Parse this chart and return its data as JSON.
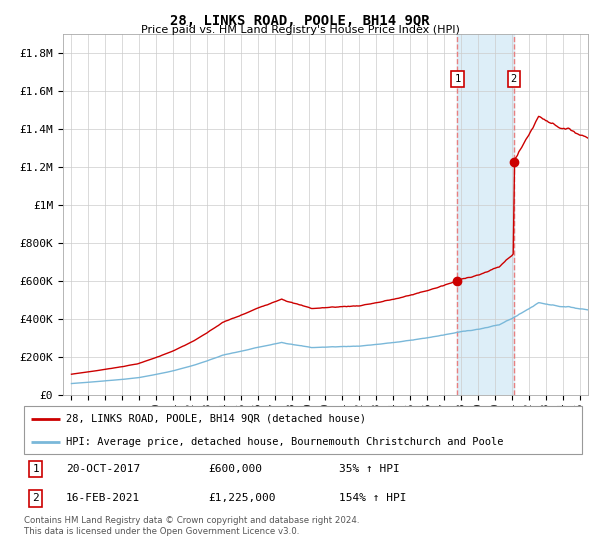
{
  "title": "28, LINKS ROAD, POOLE, BH14 9QR",
  "subtitle": "Price paid vs. HM Land Registry's House Price Index (HPI)",
  "ylim": [
    0,
    1900000
  ],
  "xlim_start": 1994.5,
  "xlim_end": 2025.5,
  "yticks": [
    0,
    200000,
    400000,
    600000,
    800000,
    1000000,
    1200000,
    1400000,
    1600000,
    1800000
  ],
  "ytick_labels": [
    "£0",
    "£200K",
    "£400K",
    "£600K",
    "£800K",
    "£1M",
    "£1.2M",
    "£1.4M",
    "£1.6M",
    "£1.8M"
  ],
  "xticks": [
    1995,
    1996,
    1997,
    1998,
    1999,
    2000,
    2001,
    2002,
    2003,
    2004,
    2005,
    2006,
    2007,
    2008,
    2009,
    2010,
    2011,
    2012,
    2013,
    2014,
    2015,
    2016,
    2017,
    2018,
    2019,
    2020,
    2021,
    2022,
    2023,
    2024,
    2025
  ],
  "hpi_color": "#7ab8d9",
  "price_color": "#cc0000",
  "marker_color": "#cc0000",
  "vline_color": "#e88080",
  "highlight_color": "#ddeef8",
  "transaction1_date": 2017.79,
  "transaction1_price": 600000,
  "transaction1_label": "1",
  "transaction2_date": 2021.12,
  "transaction2_price": 1225000,
  "transaction2_label": "2",
  "legend_line1": "28, LINKS ROAD, POOLE, BH14 9QR (detached house)",
  "legend_line2": "HPI: Average price, detached house, Bournemouth Christchurch and Poole",
  "note1_label": "1",
  "note1_date": "20-OCT-2017",
  "note1_price": "£600,000",
  "note1_hpi": "35% ↑ HPI",
  "note2_label": "2",
  "note2_date": "16-FEB-2021",
  "note2_price": "£1,225,000",
  "note2_hpi": "154% ↑ HPI",
  "footer": "Contains HM Land Registry data © Crown copyright and database right 2024.\nThis data is licensed under the Open Government Licence v3.0.",
  "background_color": "#ffffff",
  "grid_color": "#cccccc"
}
